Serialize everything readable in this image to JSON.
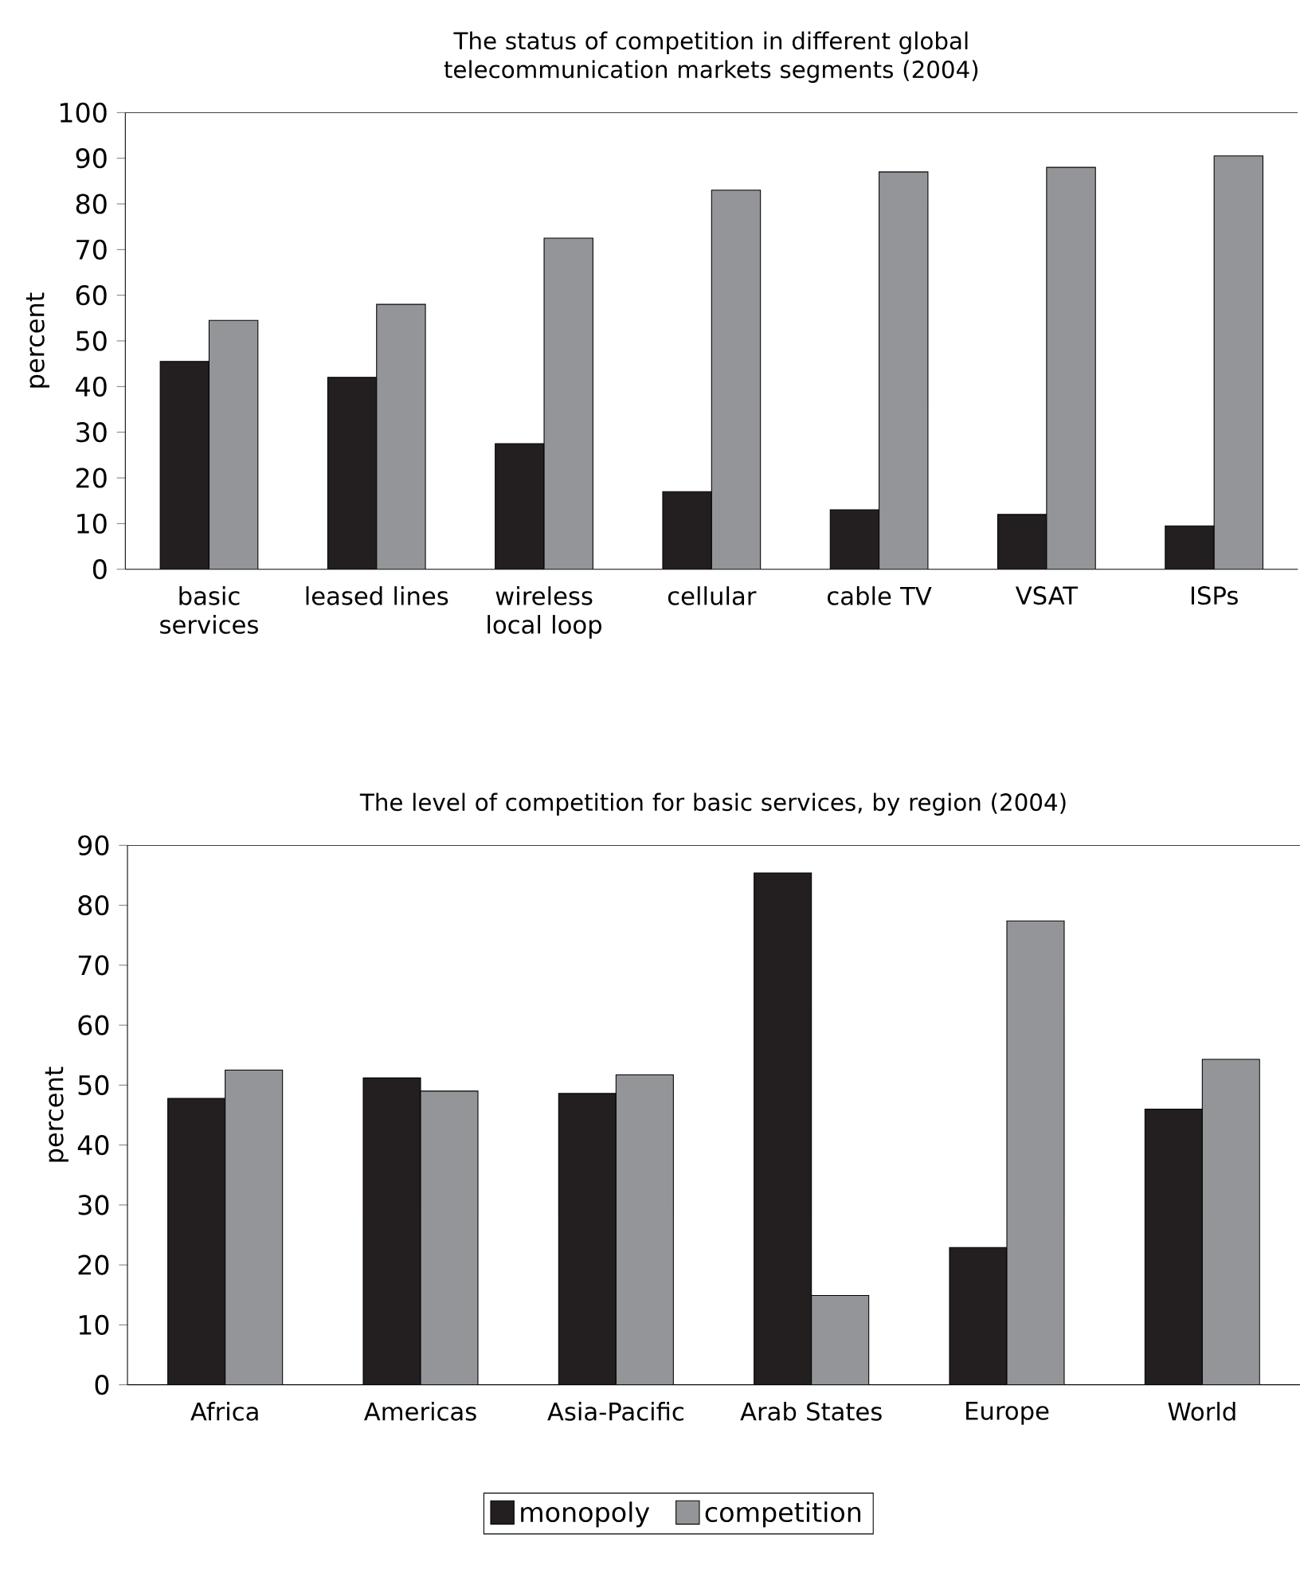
{
  "chart_data": [
    {
      "type": "bar",
      "title": "The status of competition in different global telecommunication markets segments (2004)",
      "ylabel": "percent",
      "categories": [
        "basic services",
        "leased lines",
        "wireless local loop",
        "cellular",
        "cable TV",
        "VSAT",
        "ISPs"
      ],
      "series": [
        {
          "color": "#231f20",
          "values": [
            45.5,
            42,
            27.5,
            17,
            13,
            12,
            9.5
          ]
        },
        {
          "color": "#939598",
          "values": [
            54.5,
            58,
            72.5,
            83,
            87,
            88,
            90.5
          ]
        }
      ],
      "ylim": [
        0,
        100
      ],
      "yticks": [
        0,
        10,
        20,
        30,
        40,
        50,
        60,
        70,
        80,
        90,
        100
      ]
    },
    {
      "type": "bar",
      "title": "The level of competition for basic services, by region (2004)",
      "ylabel": "percent",
      "categories": [
        "Africa",
        "Americas",
        "Asia-Pacific",
        "Arab States",
        "Europe",
        "World"
      ],
      "series": [
        {
          "name": "monopoly",
          "color": "#231f20",
          "values": [
            47.8,
            51.2,
            48.6,
            85.4,
            22.9,
            46
          ]
        },
        {
          "name": "competition",
          "color": "#939598",
          "values": [
            52.5,
            49,
            51.7,
            14.9,
            77.4,
            54.3
          ]
        }
      ],
      "ylim": [
        0,
        90
      ],
      "yticks": [
        0,
        10,
        20,
        30,
        40,
        50,
        60,
        70,
        80,
        90
      ],
      "legend": "bottom"
    }
  ]
}
